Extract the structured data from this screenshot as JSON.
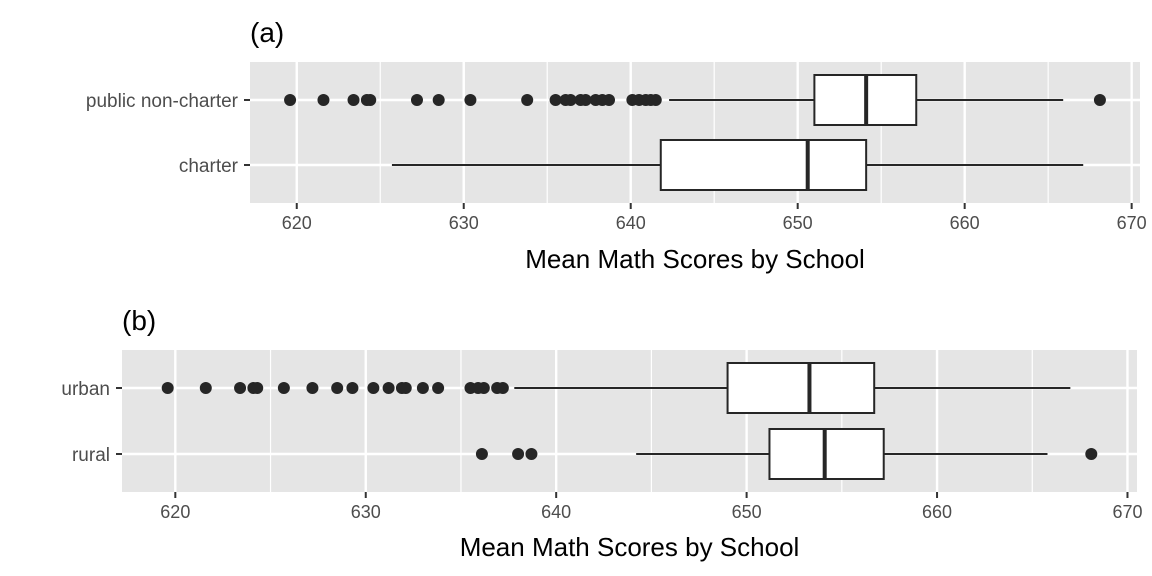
{
  "chart_data": [
    {
      "type": "boxplot",
      "panel_label": "(a)",
      "xlabel": "Mean Math Scores by School",
      "ylabel": "",
      "xlim": [
        617.2,
        670.5
      ],
      "x_ticks": [
        620,
        630,
        640,
        650,
        660,
        670
      ],
      "grid": true,
      "orientation": "horizontal",
      "categories": [
        {
          "name": "public non-charter",
          "whisker_low": 642.3,
          "q1": 651.0,
          "median": 654.1,
          "q3": 657.1,
          "whisker_high": 665.9,
          "outliers": [
            619.6,
            621.6,
            623.4,
            624.2,
            624.4,
            627.2,
            628.5,
            630.4,
            633.8,
            635.5,
            636.1,
            636.4,
            637.0,
            637.3,
            637.9,
            638.3,
            638.7,
            640.1,
            640.5,
            640.9,
            641.2,
            641.5,
            668.1
          ]
        },
        {
          "name": "charter",
          "whisker_low": 625.7,
          "q1": 641.8,
          "median": 650.6,
          "q3": 654.1,
          "whisker_high": 667.1,
          "outliers": []
        }
      ]
    },
    {
      "type": "boxplot",
      "panel_label": "(b)",
      "xlabel": "Mean Math Scores by School",
      "ylabel": "",
      "xlim": [
        617.2,
        670.5
      ],
      "x_ticks": [
        620,
        630,
        640,
        650,
        660,
        670
      ],
      "grid": true,
      "orientation": "horizontal",
      "categories": [
        {
          "name": "urban",
          "whisker_low": 637.8,
          "q1": 649.0,
          "median": 653.3,
          "q3": 656.7,
          "whisker_high": 667.0,
          "outliers": [
            619.6,
            621.6,
            623.4,
            624.1,
            624.3,
            625.7,
            627.2,
            628.5,
            629.3,
            630.4,
            631.2,
            631.9,
            632.1,
            633.0,
            633.8,
            635.5,
            635.9,
            636.2,
            636.9,
            637.2
          ]
        },
        {
          "name": "rural",
          "whisker_low": 644.2,
          "q1": 651.2,
          "median": 654.1,
          "q3": 657.2,
          "whisker_high": 665.8,
          "outliers": [
            636.1,
            638.0,
            638.7,
            668.1
          ]
        }
      ]
    }
  ],
  "colors": {
    "panel_bg": "#e5e5e5",
    "grid": "#ffffff",
    "ink": "#262626",
    "tick_text": "#4d4d4d"
  }
}
